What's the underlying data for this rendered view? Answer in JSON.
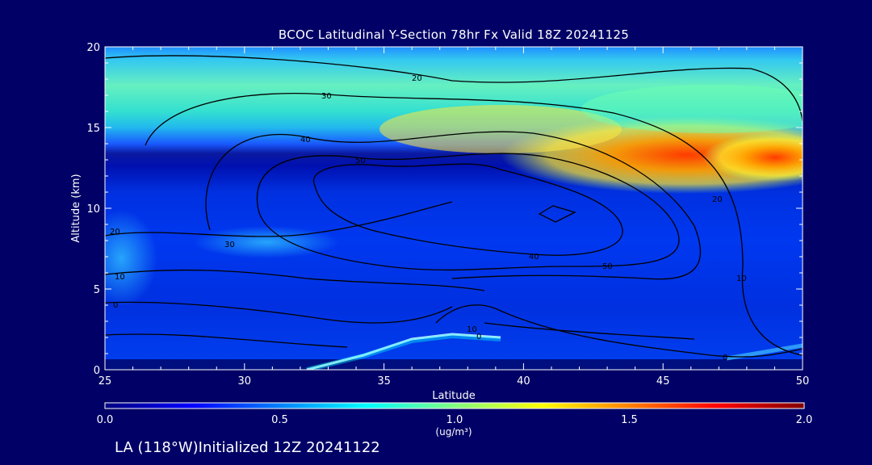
{
  "chart_data": {
    "type": "heatmap",
    "title": "BCOC Latitudinal Y-Section 78hr  Fx Valid 18Z 20241125",
    "xlabel": "Latitude",
    "ylabel": "Altitude (km)",
    "xlim": [
      25,
      50
    ],
    "ylim": [
      0,
      20
    ],
    "x_ticks": [
      "25",
      "30",
      "35",
      "40",
      "45",
      "50"
    ],
    "y_ticks": [
      "0",
      "5",
      "10",
      "15",
      "20"
    ],
    "colorbar": {
      "min": 0.0,
      "max": 2.0,
      "ticks": [
        "0.0",
        "0.5",
        "1.0",
        "1.5",
        "2.0"
      ],
      "unit": "(ug/m³)",
      "colors": [
        "#000080",
        "#0000ff",
        "#0080ff",
        "#00ffff",
        "#80ff80",
        "#ffff00",
        "#ff8000",
        "#ff0000",
        "#800000"
      ]
    },
    "contour_labels": [
      "20",
      "30",
      "40",
      "50",
      "20",
      "30",
      "10",
      "0",
      "40",
      "50",
      "20",
      "10",
      "0",
      "10",
      "0"
    ]
  },
  "footer": "LA (118°W)Initialized 12Z 20241122"
}
